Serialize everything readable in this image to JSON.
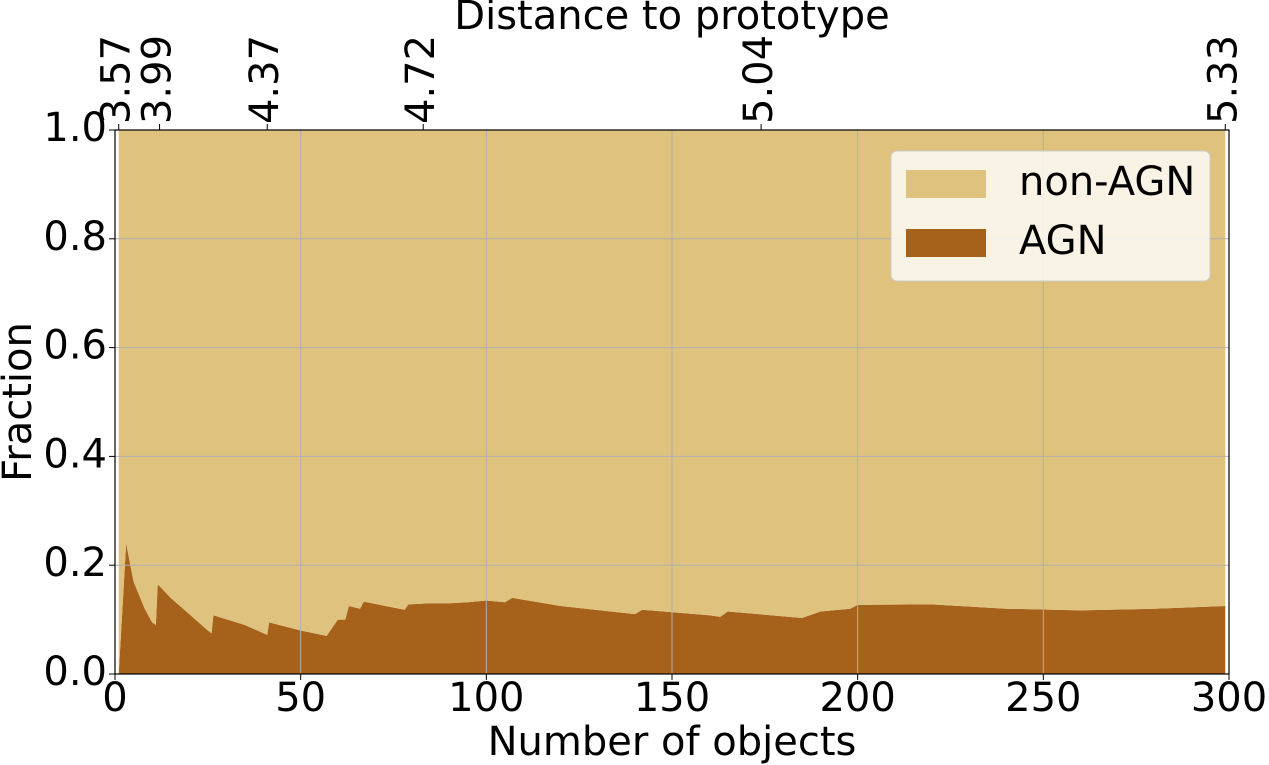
{
  "chart_data": {
    "type": "area",
    "stacked": true,
    "xlabel": "Number of objects",
    "ylabel": "Fraction",
    "x2label": "Distance to prototype",
    "x": [
      1,
      3,
      5,
      8,
      10,
      11,
      11.5,
      15,
      20,
      25,
      26,
      26.5,
      35,
      40,
      41,
      41.5,
      50,
      57,
      60,
      62,
      63,
      66,
      67,
      78,
      79,
      85,
      90,
      95,
      100,
      105,
      107,
      120,
      140,
      142,
      160,
      163,
      165,
      185,
      190,
      198,
      200,
      220,
      240,
      260,
      280,
      299
    ],
    "series": [
      {
        "name": "AGN",
        "color": "#a6611a",
        "values": [
          0.0,
          0.24,
          0.17,
          0.12,
          0.095,
          0.09,
          0.165,
          0.14,
          0.11,
          0.08,
          0.075,
          0.108,
          0.09,
          0.075,
          0.072,
          0.095,
          0.08,
          0.07,
          0.1,
          0.1,
          0.125,
          0.12,
          0.133,
          0.118,
          0.128,
          0.13,
          0.13,
          0.132,
          0.135,
          0.132,
          0.14,
          0.125,
          0.11,
          0.118,
          0.108,
          0.105,
          0.115,
          0.103,
          0.115,
          0.12,
          0.127,
          0.128,
          0.12,
          0.117,
          0.12,
          0.125
        ]
      },
      {
        "name": "non-AGN",
        "color": "#dfc27d",
        "values": [
          1.0,
          0.76,
          0.83,
          0.88,
          0.905,
          0.91,
          0.835,
          0.86,
          0.89,
          0.92,
          0.925,
          0.892,
          0.91,
          0.925,
          0.928,
          0.905,
          0.92,
          0.93,
          0.9,
          0.9,
          0.875,
          0.88,
          0.867,
          0.882,
          0.872,
          0.87,
          0.87,
          0.868,
          0.865,
          0.868,
          0.86,
          0.875,
          0.89,
          0.882,
          0.892,
          0.895,
          0.885,
          0.897,
          0.885,
          0.88,
          0.873,
          0.872,
          0.88,
          0.883,
          0.88,
          0.875
        ]
      }
    ],
    "xlim": [
      0,
      300
    ],
    "xticks": [
      0,
      50,
      100,
      150,
      200,
      250,
      300
    ],
    "ylim": [
      0,
      1
    ],
    "yticks": [
      {
        "value": 0,
        "label": "0.0"
      },
      0.2,
      0.4,
      0.6,
      0.8,
      {
        "value": 1,
        "label": "1.0"
      }
    ],
    "x2ticks": [
      {
        "value": 1,
        "label": "3.57"
      },
      {
        "value": 12,
        "label": "3.99"
      },
      {
        "value": 41,
        "label": "4.37"
      },
      {
        "value": 83,
        "label": "4.72"
      },
      {
        "value": 174,
        "label": "5.04"
      },
      {
        "value": 299,
        "label": "5.33"
      }
    ],
    "grid": true,
    "legend": "upper right"
  }
}
